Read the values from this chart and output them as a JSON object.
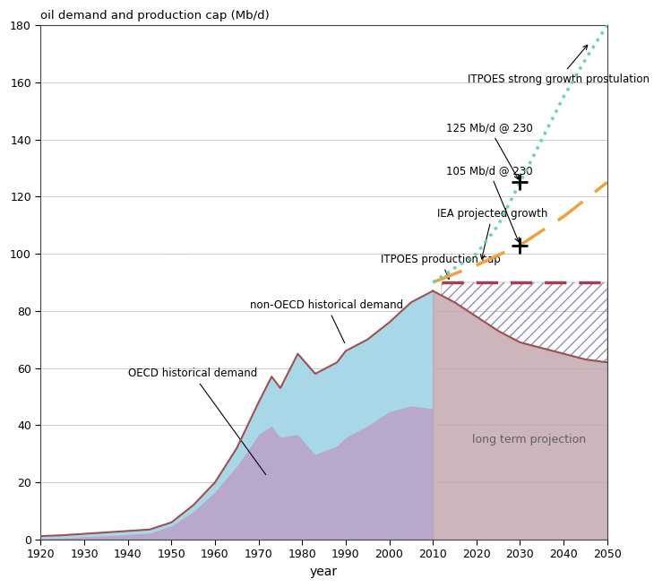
{
  "title": "oil demand and production cap (Mb/d)",
  "xlabel": "year",
  "xlim": [
    1920,
    2050
  ],
  "ylim": [
    0,
    180
  ],
  "yticks": [
    0,
    20,
    40,
    60,
    80,
    100,
    120,
    140,
    160,
    180
  ],
  "xticks": [
    1920,
    1930,
    1940,
    1950,
    1960,
    1970,
    1980,
    1990,
    2000,
    2010,
    2020,
    2030,
    2040,
    2050
  ],
  "bg_color": "#ffffff",
  "oecd_color": "#b8a8cc",
  "nonoecd_color": "#a8d8e8",
  "total_line_color": "#a05050",
  "projection_fill_color": "#c4a8b0",
  "production_cap_color": "#a04050",
  "itpoes_dotted_color": "#6dcfbe",
  "iea_dashed_color": "#f0a040",
  "hatch_color": "#9090b8",
  "annotation_color": "#606060",
  "key_years_oecd": [
    1920,
    1925,
    1930,
    1935,
    1940,
    1945,
    1950,
    1955,
    1960,
    1965,
    1970,
    1973,
    1975,
    1979,
    1983,
    1988,
    1990,
    1995,
    2000,
    2005,
    2010
  ],
  "key_vals_oecd": [
    0.5,
    0.8,
    1.2,
    1.5,
    2.0,
    2.5,
    5.0,
    10,
    17,
    26,
    37,
    40,
    36,
    37,
    30,
    33,
    36,
    40,
    45,
    47,
    46
  ],
  "key_years_total": [
    1920,
    1925,
    1930,
    1935,
    1940,
    1945,
    1950,
    1955,
    1960,
    1965,
    1970,
    1973,
    1975,
    1979,
    1983,
    1988,
    1990,
    1995,
    2000,
    2005,
    2010
  ],
  "key_vals_total": [
    1.2,
    1.5,
    2.0,
    2.5,
    3.0,
    3.5,
    6.0,
    12,
    20,
    32,
    48,
    57,
    53,
    65,
    58,
    62,
    66,
    70,
    76,
    83,
    87
  ],
  "years_future": [
    2010,
    2015,
    2020,
    2025,
    2030,
    2035,
    2040,
    2045,
    2050
  ],
  "future_vals": [
    87,
    83,
    78,
    73,
    69,
    67,
    65,
    63,
    62
  ],
  "cap_start_year": 2012,
  "cap_end_year": 2050,
  "cap_val": 90,
  "iea_years": [
    2010,
    2020,
    2030,
    2040,
    2050
  ],
  "iea_vals": [
    90,
    96,
    103,
    113,
    125
  ],
  "itpoes_years": [
    2010,
    2020,
    2025,
    2030,
    2035,
    2040,
    2045,
    2050
  ],
  "itpoes_vals": [
    90,
    100,
    110,
    125,
    140,
    155,
    168,
    180
  ],
  "marker1_x": 2030,
  "marker1_y": 125,
  "marker2_x": 2030,
  "marker2_y": 103
}
